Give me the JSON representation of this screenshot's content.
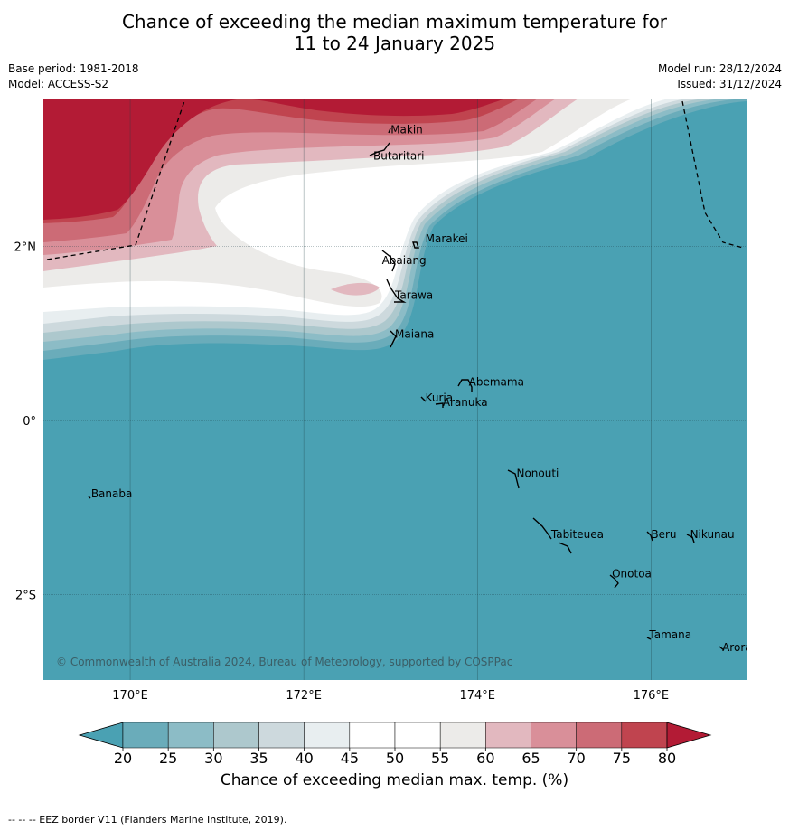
{
  "title": {
    "line1": "Chance of exceeding the median maximum temperature for",
    "line2": "11 to 24 January 2025"
  },
  "meta": {
    "base_period": "Base period: 1981-2018",
    "model": "Model: ACCESS-S2",
    "model_run": "Model run: 28/12/2024",
    "issued": "Issued: 31/12/2024"
  },
  "map": {
    "lon_range": [
      169.0,
      177.1
    ],
    "lat_range": [
      -2.98,
      3.7
    ],
    "x_ticks": [
      {
        "value": 170,
        "label": "170°E"
      },
      {
        "value": 172,
        "label": "172°E"
      },
      {
        "value": 174,
        "label": "174°E"
      },
      {
        "value": 176,
        "label": "176°E"
      }
    ],
    "y_ticks": [
      {
        "value": 2,
        "label": "2°N"
      },
      {
        "value": 0,
        "label": "0°"
      },
      {
        "value": -2,
        "label": "2°S"
      }
    ],
    "places": [
      {
        "name": "Makin",
        "lon": 173.0,
        "lat": 3.3
      },
      {
        "name": "Butaritari",
        "lon": 172.8,
        "lat": 3.0
      },
      {
        "name": "Marakei",
        "lon": 173.4,
        "lat": 2.05
      },
      {
        "name": "Abaiang",
        "lon": 172.9,
        "lat": 1.8
      },
      {
        "name": "Tarawa",
        "lon": 173.05,
        "lat": 1.4
      },
      {
        "name": "Maiana",
        "lon": 173.05,
        "lat": 0.95
      },
      {
        "name": "Abemama",
        "lon": 173.9,
        "lat": 0.4
      },
      {
        "name": "Kuria",
        "lon": 173.4,
        "lat": 0.22
      },
      {
        "name": "Aranuka",
        "lon": 173.6,
        "lat": 0.17
      },
      {
        "name": "Nonouti",
        "lon": 174.45,
        "lat": -0.65
      },
      {
        "name": "Banaba",
        "lon": 169.55,
        "lat": -0.88
      },
      {
        "name": "Tabiteuea",
        "lon": 174.85,
        "lat": -1.35
      },
      {
        "name": "Beru",
        "lon": 176.0,
        "lat": -1.35
      },
      {
        "name": "Nikunau",
        "lon": 176.45,
        "lat": -1.35
      },
      {
        "name": "Onotoa",
        "lon": 175.55,
        "lat": -1.8
      },
      {
        "name": "Tamana",
        "lon": 175.98,
        "lat": -2.5
      },
      {
        "name": "Arorae",
        "lon": 176.82,
        "lat": -2.65
      }
    ],
    "copyright": "© Commonwealth of Australia 2024, Bureau of Meteorology, supported by COSPPac"
  },
  "colorbar": {
    "ticks": [
      "20",
      "25",
      "30",
      "35",
      "40",
      "45",
      "50",
      "55",
      "60",
      "65",
      "70",
      "75",
      "80"
    ],
    "colors": [
      "#6aacba",
      "#8cbcc6",
      "#adc8cd",
      "#cdd9dd",
      "#e8eef0",
      "#ffffff",
      "#ffffff",
      "#ecebe9",
      "#e2b8bf",
      "#d98f99",
      "#cc6b76",
      "#c0444f"
    ],
    "low_color": "#4aa1b3",
    "high_color": "#b31b35",
    "label": "Chance of exceeding median max. temp. (%)"
  },
  "footnote": "--  --  -- EEZ border V11 (Flanders Marine Institute, 2019).",
  "colors": {
    "ocean_base": "#4aa1b3",
    "warm_max": "#b31b35"
  }
}
